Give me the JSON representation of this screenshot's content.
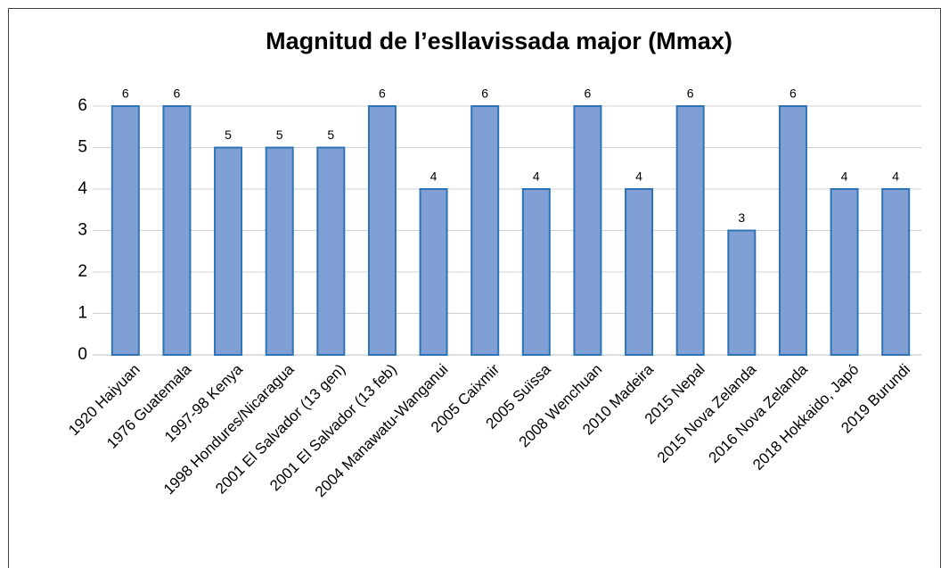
{
  "chart_data": {
    "type": "bar",
    "title": "Magnitud de l’esllavissada major (Mmax)",
    "categories": [
      "1920 Haiyuan",
      "1976 Guatemala",
      "1997-98 Kenya",
      "1998 Hondures/Nicaragua",
      "2001 El Salvador (13 gen)",
      "2001 El Salvador (13 feb)",
      "2004 Manawatu-Wanganui",
      "2005 Caixmir",
      "2005 Suïssa",
      "2008 Wenchuan",
      "2010 Madeira",
      "2015 Nepal",
      "2015 Nova Zelanda",
      "2016 Nova Zelanda",
      "2018 Hokkaido, Japó",
      "2019 Burundi"
    ],
    "values": [
      6,
      6,
      5,
      5,
      5,
      6,
      4,
      6,
      4,
      6,
      4,
      6,
      3,
      6,
      4,
      4
    ],
    "color": "#7f9fd5",
    "ylim": [
      0,
      6
    ],
    "yticks": [
      0,
      1,
      2,
      3,
      4,
      5,
      6
    ],
    "grid": true
  }
}
